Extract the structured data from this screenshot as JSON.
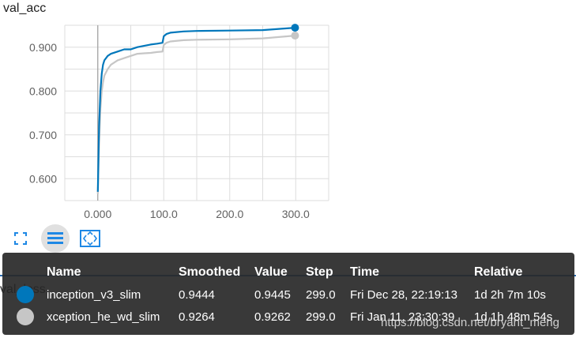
{
  "card": {
    "title": "val_acc"
  },
  "second_card": {
    "title": "val_loss"
  },
  "chart_data": {
    "type": "line",
    "xlabel": "",
    "ylabel": "",
    "xlim": [
      -50,
      350
    ],
    "ylim": [
      0.55,
      0.95
    ],
    "x_ticks": [
      "0.000",
      "100.0",
      "200.0",
      "300.0"
    ],
    "y_ticks": [
      "0.600",
      "0.700",
      "0.800",
      "0.900"
    ],
    "grid": true,
    "series": [
      {
        "name": "inception_v3_slim",
        "color": "#0077bb",
        "x": [
          0,
          2,
          4,
          6,
          8,
          10,
          15,
          20,
          30,
          40,
          50,
          60,
          70,
          80,
          90,
          98,
          100,
          104,
          110,
          130,
          150,
          200,
          250,
          299
        ],
        "y": [
          0.57,
          0.72,
          0.8,
          0.84,
          0.86,
          0.87,
          0.88,
          0.885,
          0.89,
          0.895,
          0.895,
          0.9,
          0.903,
          0.906,
          0.908,
          0.91,
          0.925,
          0.93,
          0.933,
          0.936,
          0.937,
          0.938,
          0.939,
          0.9444
        ]
      },
      {
        "name": "xception_he_wd_slim",
        "color": "#c6c6c6",
        "x": [
          0,
          2,
          4,
          6,
          8,
          10,
          15,
          20,
          30,
          40,
          50,
          60,
          70,
          80,
          90,
          98,
          100,
          104,
          110,
          130,
          150,
          200,
          250,
          299
        ],
        "y": [
          0.565,
          0.68,
          0.76,
          0.8,
          0.82,
          0.835,
          0.85,
          0.86,
          0.87,
          0.875,
          0.88,
          0.885,
          0.886,
          0.887,
          0.889,
          0.89,
          0.905,
          0.91,
          0.913,
          0.916,
          0.917,
          0.918,
          0.92,
          0.9264
        ]
      }
    ]
  },
  "toolbar": {
    "icons": [
      "fullscreen-icon",
      "data-selection-icon",
      "fit-domain-icon"
    ]
  },
  "tooltip": {
    "headers": {
      "name": "Name",
      "smoothed": "Smoothed",
      "value": "Value",
      "step": "Step",
      "time": "Time",
      "relative": "Relative"
    },
    "rows": [
      {
        "color": "#0077bb",
        "name": "inception_v3_slim",
        "smoothed": "0.9444",
        "value": "0.9445",
        "step": "299.0",
        "time": "Fri Dec 28, 22:19:13",
        "relative": "1d 2h 7m 10s"
      },
      {
        "color": "#c6c6c6",
        "name": "xception_he_wd_slim",
        "smoothed": "0.9264",
        "value": "0.9262",
        "step": "299.0",
        "time": "Fri Jan 11, 23:30:39",
        "relative": "1d 1h 48m 54s"
      }
    ]
  },
  "watermark": "https://blog.csdn.net/bryant_meng"
}
